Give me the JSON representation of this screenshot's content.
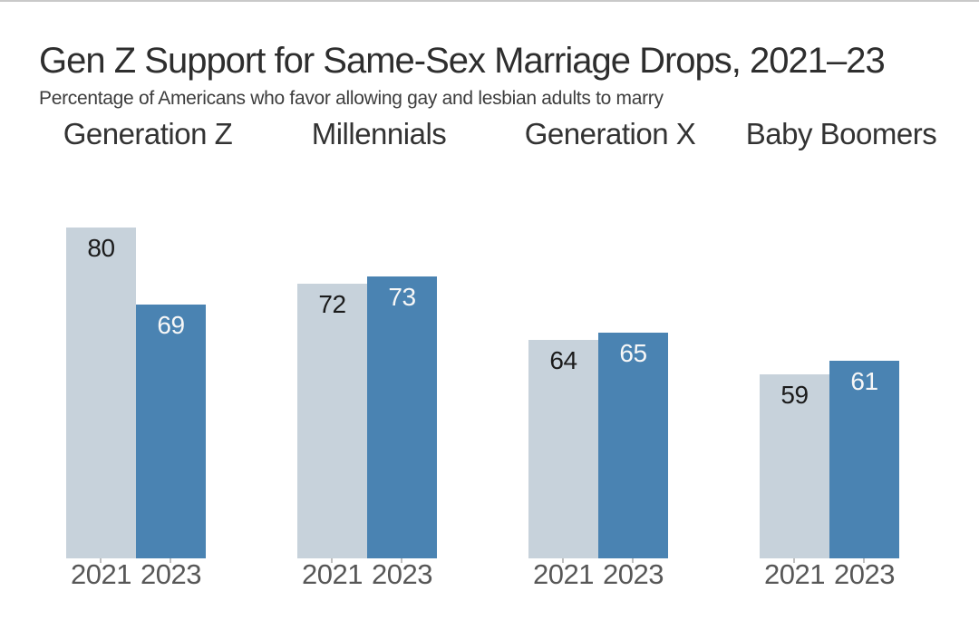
{
  "page": {
    "title": "Gen Z Support for Same-Sex Marriage Drops, 2021–23",
    "subtitle": "Percentage of Americans who favor allowing gay and lesbian adults to marry"
  },
  "colors": {
    "bar_2021": "#c7d2db",
    "bar_2023": "#4a83b2",
    "value_on_2021": "#1b1b1b",
    "value_on_2023": "#f7f7f7",
    "year_label": "#575757",
    "group_label": "#333333",
    "title_text": "#2e2e2e",
    "top_rule": "#c9c9c9",
    "background": "#ffffff"
  },
  "chart_data": {
    "type": "bar",
    "title": "Gen Z Support for Same-Sex Marriage Drops, 2021–23",
    "subtitle": "Percentage of Americans who favor allowing gay and lesbian adults to marry",
    "categories": [
      "Generation Z",
      "Millennials",
      "Generation X",
      "Baby Boomers"
    ],
    "x_tick_labels": [
      "2021",
      "2023"
    ],
    "series": [
      {
        "name": "2021",
        "color": "#c7d2db",
        "values": [
          80,
          72,
          64,
          59
        ]
      },
      {
        "name": "2023",
        "color": "#4a83b2",
        "values": [
          69,
          73,
          65,
          61
        ]
      }
    ],
    "value_labels_shown": true,
    "unit": "percent",
    "baseline_value": 33,
    "ylim": [
      33,
      85
    ],
    "grid": false,
    "axis_lines": false,
    "legend_position": "none"
  }
}
